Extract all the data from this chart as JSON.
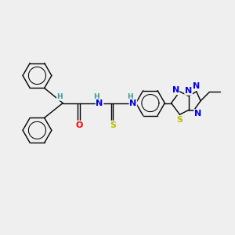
{
  "background_color": "#efefef",
  "colors": {
    "carbon": "#000000",
    "nitrogen": "#0000EE",
    "oxygen": "#FF0000",
    "sulfur": "#BBBB00",
    "hydrogen": "#3a9999",
    "bond": "#000000",
    "background": "#efefef"
  },
  "layout": {
    "xlim": [
      0,
      10
    ],
    "ylim": [
      0,
      10
    ],
    "figsize": [
      3.0,
      3.0
    ],
    "dpi": 100
  }
}
